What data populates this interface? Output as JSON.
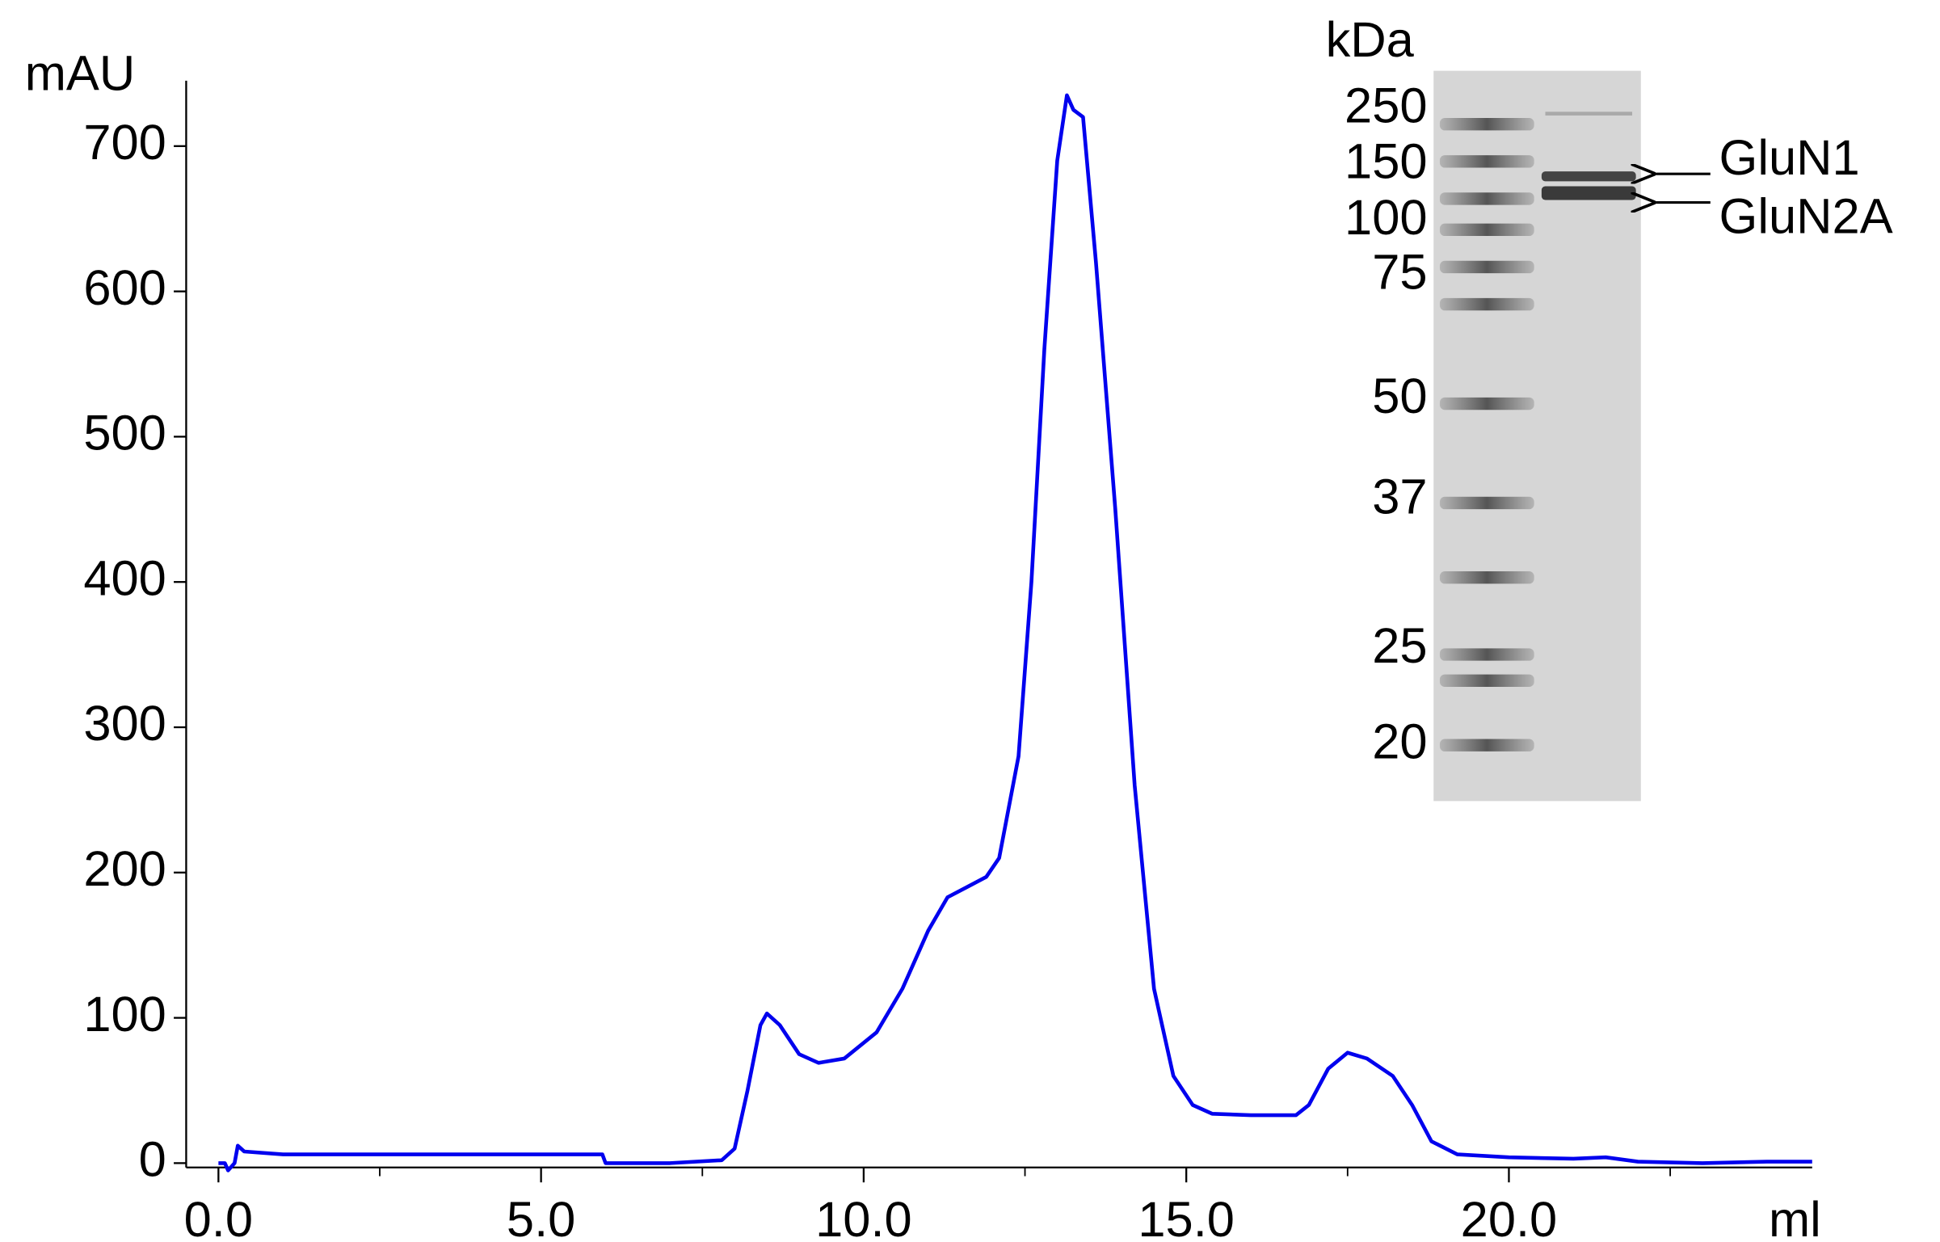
{
  "chart_data": {
    "type": "line",
    "x_label": "ml",
    "y_label": "mAU",
    "x": [
      0,
      0.1,
      0.15,
      0.25,
      0.3,
      0.4,
      1,
      3,
      5,
      5.95,
      6.0,
      7,
      7.8,
      8.0,
      8.2,
      8.4,
      8.5,
      8.7,
      9.0,
      9.3,
      9.7,
      10.2,
      10.6,
      11.0,
      11.3,
      11.6,
      11.9,
      12.1,
      12.4,
      12.6,
      12.8,
      13.0,
      13.15,
      13.25,
      13.4,
      13.6,
      13.9,
      14.2,
      14.5,
      14.8,
      15.1,
      15.4,
      16.0,
      16.7,
      16.9,
      17.2,
      17.5,
      17.8,
      18.2,
      18.5,
      18.8,
      19.2,
      20,
      21,
      21.5,
      22,
      23,
      24,
      24.7
    ],
    "series": [
      {
        "color": "#0000ee",
        "values": [
          0,
          0,
          -5,
          0,
          12,
          8,
          6,
          6,
          6,
          6,
          0,
          0,
          2,
          10,
          50,
          95,
          103,
          95,
          75,
          69,
          72,
          90,
          120,
          160,
          183,
          190,
          197,
          210,
          280,
          400,
          560,
          690,
          735,
          725,
          720,
          620,
          450,
          260,
          120,
          60,
          40,
          34,
          33,
          33,
          40,
          65,
          76,
          72,
          60,
          40,
          15,
          6,
          4,
          3,
          4,
          1,
          0,
          1,
          1
        ]
      }
    ],
    "xlim": [
      -0.5,
      24.7
    ],
    "ylim": [
      -3,
      745
    ],
    "xticks": [
      {
        "value": 0,
        "label": "0.0"
      },
      {
        "value": 5,
        "label": "5.0"
      },
      {
        "value": 10,
        "label": "10.0"
      },
      {
        "value": 15,
        "label": "15.0"
      },
      {
        "value": 20,
        "label": "20.0"
      }
    ],
    "xminorticks": [
      2.5,
      7.5,
      12.5,
      17.5,
      22.5
    ],
    "yticks": [
      0,
      100,
      200,
      300,
      400,
      500,
      600,
      700
    ]
  },
  "gel": {
    "unit": "kDa",
    "markers": [
      250,
      150,
      100,
      75,
      50,
      37,
      25,
      20
    ],
    "bands": [
      "GluN1",
      "GluN2A"
    ]
  }
}
